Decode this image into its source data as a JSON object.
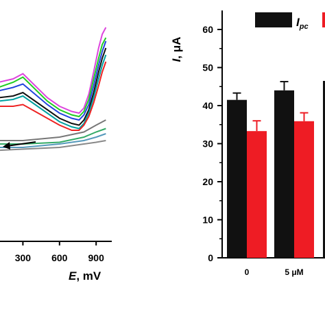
{
  "chart_data": [
    {
      "type": "line",
      "panel": "left",
      "xlabel": {
        "symbol": "E",
        "unit": ", mV"
      },
      "ylabel": "",
      "xlim": [
        0,
        1000
      ],
      "x_ticks": [
        {
          "value": 300,
          "label": "300"
        },
        {
          "value": 600,
          "label": "600"
        },
        {
          "value": 900,
          "label": "900"
        }
      ],
      "scan_arrow": {
        "from": [
          860,
          34
        ],
        "to": [
          770,
          40
        ],
        "direction": "cathodic"
      },
      "series": [
        {
          "color": "#dd44dd",
          "x": [
            0,
            100,
            220,
            300,
            400,
            500,
            600,
            700,
            760,
            800,
            840,
            880,
            920,
            950,
            980
          ],
          "y": [
            72,
            72,
            74,
            77,
            70,
            63,
            58,
            55,
            54,
            57,
            65,
            78,
            92,
            100,
            104
          ]
        },
        {
          "color": "#22cc22",
          "x": [
            0,
            100,
            220,
            300,
            400,
            500,
            600,
            700,
            760,
            800,
            840,
            880,
            920,
            950,
            980
          ],
          "y": [
            70,
            69,
            72,
            75,
            68,
            61,
            56,
            53,
            52,
            55,
            62,
            74,
            86,
            94,
            98
          ]
        },
        {
          "color": "#2244dd",
          "x": [
            0,
            100,
            220,
            300,
            400,
            500,
            600,
            700,
            760,
            800,
            840,
            880,
            920,
            950,
            980
          ],
          "y": [
            67,
            67,
            69,
            71,
            65,
            59,
            54,
            51,
            50,
            53,
            59,
            70,
            82,
            90,
            96
          ]
        },
        {
          "color": "#111111",
          "x": [
            0,
            100,
            220,
            300,
            400,
            500,
            600,
            700,
            760,
            800,
            840,
            880,
            920,
            950,
            980
          ],
          "y": [
            64,
            63,
            64,
            66,
            61,
            56,
            51,
            48,
            47,
            50,
            56,
            66,
            78,
            86,
            92
          ]
        },
        {
          "color": "#00a0a0",
          "x": [
            0,
            100,
            220,
            300,
            400,
            500,
            600,
            700,
            760,
            800,
            840,
            880,
            920,
            950,
            980
          ],
          "y": [
            62,
            61,
            62,
            64,
            59,
            54,
            49,
            46,
            45,
            48,
            54,
            63,
            74,
            82,
            88
          ]
        },
        {
          "color": "#ee2222",
          "x": [
            0,
            100,
            220,
            300,
            400,
            500,
            600,
            700,
            760,
            800,
            840,
            880,
            920,
            950,
            980
          ],
          "y": [
            60,
            58,
            58,
            59,
            55,
            51,
            47,
            44,
            44,
            47,
            52,
            60,
            70,
            78,
            84
          ]
        },
        {
          "color": "#777777",
          "x": [
            0,
            300,
            600,
            800,
            900,
            980
          ],
          "y": [
            38,
            38,
            40,
            43,
            47,
            50
          ]
        },
        {
          "color": "#33aa66",
          "x": [
            0,
            300,
            600,
            800,
            900,
            980
          ],
          "y": [
            36,
            36,
            37,
            40,
            43,
            45
          ]
        },
        {
          "color": "#5599bb",
          "x": [
            0,
            300,
            600,
            800,
            900,
            980
          ],
          "y": [
            34,
            34,
            36,
            38,
            40,
            42
          ]
        },
        {
          "color": "#888888",
          "x": [
            0,
            300,
            600,
            800,
            900,
            980
          ],
          "y": [
            32,
            33,
            34,
            36,
            37,
            38
          ]
        }
      ]
    },
    {
      "type": "bar",
      "panel": "right",
      "ylabel": {
        "symbol": "I",
        "unit": ", μA"
      },
      "ylim": [
        0,
        65
      ],
      "y_ticks": [
        0,
        10,
        20,
        30,
        40,
        50,
        60
      ],
      "categories": [
        "0",
        "5 μM"
      ],
      "series": [
        {
          "legend": {
            "symbol": "I",
            "subscript": "pc"
          },
          "color": "#111111",
          "values": [
            41.5,
            44.0
          ],
          "errors": [
            1.8,
            2.3
          ]
        },
        {
          "color": "#ee1c24",
          "values": [
            33.3,
            35.9
          ],
          "errors": [
            2.7,
            2.2
          ]
        }
      ]
    }
  ]
}
